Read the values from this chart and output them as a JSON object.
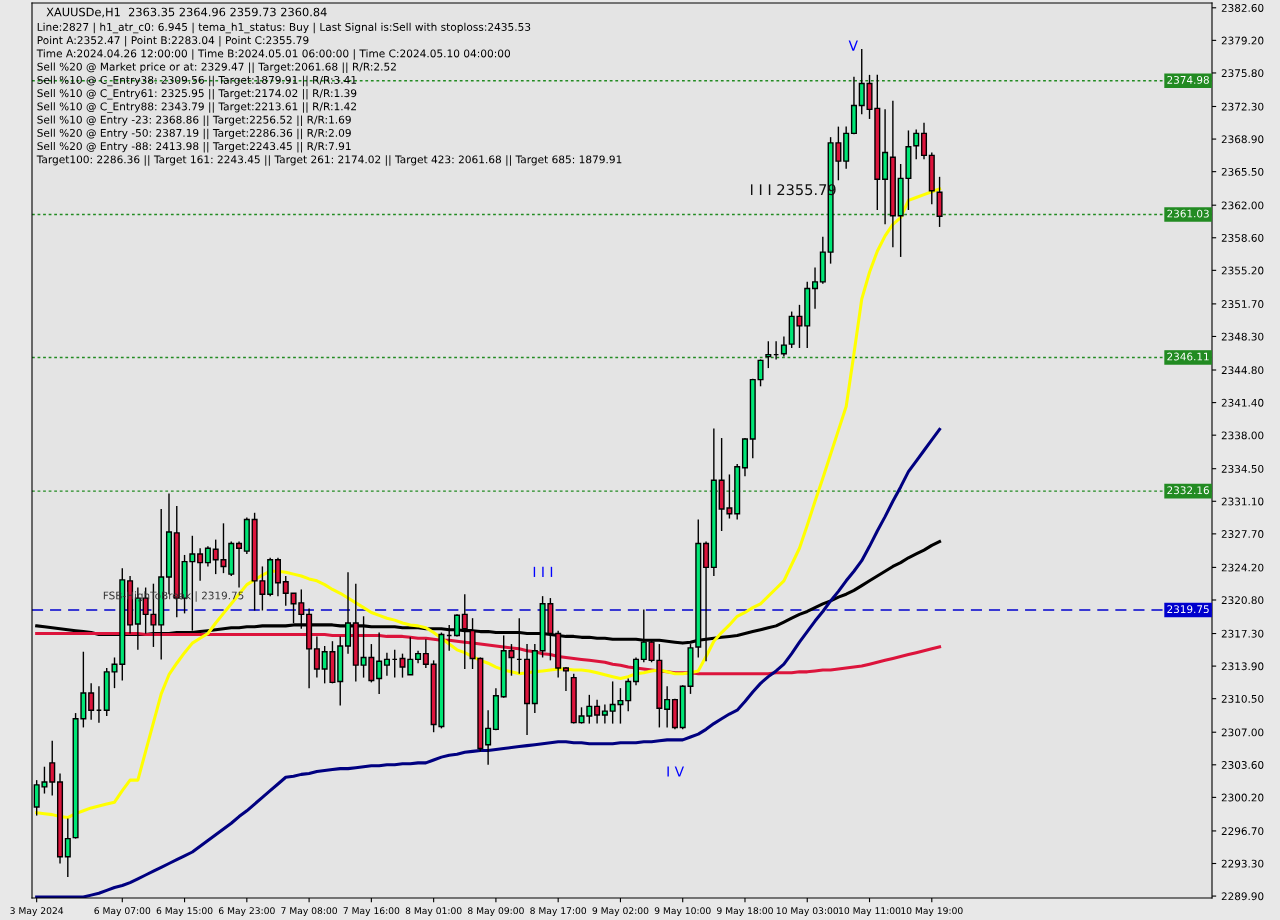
{
  "chart_data": {
    "type": "candlestick",
    "title": "XAUUSDe,H1  2363.35 2364.96 2359.73 2360.84",
    "categories": [
      "3 May 2024",
      null,
      null,
      null,
      null,
      null,
      null,
      null,
      null,
      null,
      null,
      "6 May 07:00",
      null,
      null,
      null,
      null,
      null,
      null,
      null,
      "6 May 15:00",
      null,
      null,
      null,
      null,
      null,
      null,
      null,
      "6 May 23:00",
      null,
      null,
      null,
      null,
      null,
      null,
      null,
      "7 May 08:00",
      null,
      null,
      null,
      null,
      null,
      null,
      null,
      "7 May 16:00",
      null,
      null,
      null,
      null,
      null,
      null,
      null,
      "8 May 01:00",
      null,
      null,
      null,
      null,
      null,
      null,
      null,
      "8 May 09:00",
      null,
      null,
      null,
      null,
      null,
      null,
      null,
      "8 May 17:00",
      null,
      null,
      null,
      null,
      null,
      null,
      null,
      "9 May 02:00",
      null,
      null,
      null,
      null,
      null,
      null,
      null,
      "9 May 10:00",
      null,
      null,
      null,
      null,
      null,
      null,
      null,
      "9 May 18:00",
      null,
      null,
      null,
      null,
      null,
      null,
      null,
      "10 May 03:00",
      null,
      null,
      null,
      null,
      null,
      null,
      null,
      "10 May 11:00",
      null,
      null,
      null,
      null,
      null,
      null,
      null,
      "10 May 19:00",
      null
    ],
    "ohlc": [
      [
        2299.2,
        2302.0,
        2298.3,
        2301.5
      ],
      [
        2301.3,
        2303.4,
        2300.6,
        2301.8
      ],
      [
        2303.8,
        2306.1,
        2300.4,
        2301.8
      ],
      [
        2301.8,
        2302.7,
        2293.3,
        2294.0
      ],
      [
        2294.0,
        2298.0,
        2291.9,
        2295.9
      ],
      [
        2296.0,
        2309.0,
        2295.9,
        2308.4
      ],
      [
        2308.4,
        2315.4,
        2307.5,
        2311.1
      ],
      [
        2311.1,
        2312.1,
        2308.3,
        2309.3
      ],
      [
        2309.3,
        2311.8,
        2308.0,
        2309.3
      ],
      [
        2309.3,
        2313.7,
        2308.7,
        2313.3
      ],
      [
        2313.3,
        2314.8,
        2311.6,
        2314.1
      ],
      [
        2314.1,
        2324.1,
        2312.4,
        2322.9
      ],
      [
        2322.8,
        2323.3,
        2317.3,
        2318.2
      ],
      [
        2318.3,
        2322.1,
        2315.6,
        2321.0
      ],
      [
        2321.0,
        2322.1,
        2317.3,
        2319.3
      ],
      [
        2319.3,
        2322.5,
        2315.9,
        2318.2
      ],
      [
        2318.2,
        2330.3,
        2314.6,
        2323.2
      ],
      [
        2323.2,
        2331.9,
        2321.4,
        2327.9
      ],
      [
        2327.8,
        2330.6,
        2319.0,
        2321.0
      ],
      [
        2321.0,
        2325.5,
        2319.4,
        2324.8
      ],
      [
        2324.8,
        2327.5,
        2317.6,
        2325.6
      ],
      [
        2325.6,
        2326.2,
        2322.8,
        2324.7
      ],
      [
        2324.7,
        2326.4,
        2324.3,
        2326.2
      ],
      [
        2326.1,
        2327.1,
        2323.5,
        2325.0
      ],
      [
        2325.0,
        2328.8,
        2323.6,
        2324.3
      ],
      [
        2323.5,
        2326.9,
        2323.3,
        2326.7
      ],
      [
        2326.7,
        2326.9,
        2322.1,
        2326.2
      ],
      [
        2325.9,
        2329.4,
        2325.6,
        2329.2
      ],
      [
        2329.2,
        2329.9,
        2319.7,
        2322.8
      ],
      [
        2322.8,
        2324.3,
        2319.7,
        2321.4
      ],
      [
        2321.4,
        2325.2,
        2321.2,
        2325.0
      ],
      [
        2325.0,
        2325.2,
        2321.2,
        2322.6
      ],
      [
        2322.7,
        2323.3,
        2320.2,
        2321.5
      ],
      [
        2321.5,
        2321.5,
        2318.4,
        2320.4
      ],
      [
        2320.5,
        2321.9,
        2317.8,
        2319.3
      ],
      [
        2319.3,
        2319.9,
        2311.6,
        2315.7
      ],
      [
        2315.7,
        2317.0,
        2312.7,
        2313.6
      ],
      [
        2313.6,
        2316.0,
        2312.1,
        2315.4
      ],
      [
        2315.4,
        2316.5,
        2312.1,
        2312.2
      ],
      [
        2312.3,
        2317.0,
        2309.8,
        2316.0
      ],
      [
        2316.0,
        2323.7,
        2315.2,
        2318.4
      ],
      [
        2318.4,
        2322.5,
        2312.3,
        2314.0
      ],
      [
        2314.0,
        2319.1,
        2312.7,
        2314.8
      ],
      [
        2314.8,
        2316.2,
        2312.2,
        2312.4
      ],
      [
        2312.6,
        2317.4,
        2311.0,
        2314.4
      ],
      [
        2314.0,
        2315.3,
        2312.9,
        2314.6
      ],
      [
        2314.6,
        2315.6,
        2312.7,
        2314.6
      ],
      [
        2314.7,
        2315.2,
        2312.7,
        2313.8
      ],
      [
        2313.0,
        2316.9,
        2313.0,
        2314.6
      ],
      [
        2314.6,
        2315.5,
        2314.2,
        2315.2
      ],
      [
        2315.2,
        2316.7,
        2313.7,
        2314.1
      ],
      [
        2314.1,
        2314.5,
        2307.0,
        2307.8
      ],
      [
        2307.6,
        2317.4,
        2307.4,
        2317.2
      ],
      [
        2317.1,
        2318.2,
        2315.5,
        2317.1
      ],
      [
        2317.1,
        2319.3,
        2317.0,
        2319.2
      ],
      [
        2319.3,
        2321.4,
        2313.6,
        2317.8
      ],
      [
        2317.6,
        2318.9,
        2313.6,
        2314.7
      ],
      [
        2314.7,
        2314.8,
        2305.0,
        2305.3
      ],
      [
        2305.7,
        2309.3,
        2303.6,
        2307.4
      ],
      [
        2307.3,
        2311.6,
        2307.2,
        2310.8
      ],
      [
        2310.7,
        2317.1,
        2310.6,
        2315.5
      ],
      [
        2315.5,
        2316.2,
        2312.9,
        2314.8
      ],
      [
        2314.6,
        2318.9,
        2313.1,
        2314.6
      ],
      [
        2314.6,
        2316.2,
        2306.7,
        2310.0
      ],
      [
        2310.0,
        2316.2,
        2309.0,
        2315.5
      ],
      [
        2315.5,
        2321.2,
        2314.8,
        2320.4
      ],
      [
        2320.4,
        2321.0,
        2314.5,
        2317.3
      ],
      [
        2317.3,
        2317.6,
        2312.7,
        2313.7
      ],
      [
        2313.7,
        2313.8,
        2311.3,
        2313.4
      ],
      [
        2312.7,
        2313.1,
        2307.9,
        2308.0
      ],
      [
        2308.0,
        2309.6,
        2307.9,
        2308.7
      ],
      [
        2308.7,
        2310.9,
        2307.9,
        2309.7
      ],
      [
        2309.7,
        2310.4,
        2307.9,
        2308.8
      ],
      [
        2308.8,
        2309.9,
        2307.9,
        2309.2
      ],
      [
        2309.2,
        2312.3,
        2307.9,
        2309.9
      ],
      [
        2309.9,
        2311.6,
        2307.9,
        2310.3
      ],
      [
        2310.3,
        2312.6,
        2309.2,
        2312.3
      ],
      [
        2312.3,
        2314.8,
        2311.9,
        2314.6
      ],
      [
        2314.6,
        2319.8,
        2314.3,
        2316.4
      ],
      [
        2316.4,
        2316.7,
        2314.3,
        2314.5
      ],
      [
        2314.5,
        2316.2,
        2307.5,
        2309.5
      ],
      [
        2309.4,
        2311.8,
        2307.5,
        2310.4
      ],
      [
        2310.4,
        2310.5,
        2307.3,
        2307.5
      ],
      [
        2307.5,
        2311.9,
        2307.3,
        2311.8
      ],
      [
        2311.8,
        2316.2,
        2311.0,
        2315.8
      ],
      [
        2315.9,
        2329.2,
        2314.8,
        2326.7
      ],
      [
        2326.7,
        2326.9,
        2314.4,
        2324.2
      ],
      [
        2324.2,
        2338.7,
        2323.3,
        2333.3
      ],
      [
        2333.3,
        2337.7,
        2328.0,
        2330.3
      ],
      [
        2330.4,
        2333.9,
        2329.3,
        2329.8
      ],
      [
        2329.8,
        2335.0,
        2329.2,
        2334.7
      ],
      [
        2334.6,
        2337.7,
        2333.7,
        2337.6
      ],
      [
        2337.6,
        2343.9,
        2335.6,
        2343.8
      ],
      [
        2343.8,
        2345.9,
        2343.1,
        2345.8
      ],
      [
        2346.2,
        2347.8,
        2345.0,
        2346.4
      ],
      [
        2346.4,
        2347.8,
        2345.9,
        2346.4
      ],
      [
        2346.5,
        2348.3,
        2346.2,
        2347.4
      ],
      [
        2347.5,
        2350.9,
        2347.1,
        2350.4
      ],
      [
        2350.4,
        2351.6,
        2347.1,
        2349.4
      ],
      [
        2349.4,
        2354.0,
        2347.1,
        2353.3
      ],
      [
        2353.3,
        2355.5,
        2351.2,
        2354.0
      ],
      [
        2354.0,
        2358.7,
        2353.8,
        2357.1
      ],
      [
        2357.1,
        2369.1,
        2355.9,
        2368.5
      ],
      [
        2368.5,
        2370.2,
        2364.6,
        2366.6
      ],
      [
        2366.6,
        2370.2,
        2365.8,
        2369.5
      ],
      [
        2369.5,
        2375.4,
        2369.4,
        2372.4
      ],
      [
        2372.4,
        2378.3,
        2371.5,
        2374.7
      ],
      [
        2374.7,
        2375.6,
        2371.0,
        2372.0
      ],
      [
        2372.1,
        2375.6,
        2361.5,
        2364.7
      ],
      [
        2364.7,
        2372.0,
        2360.0,
        2367.5
      ],
      [
        2367.0,
        2372.9,
        2357.6,
        2360.9
      ],
      [
        2360.9,
        2366.3,
        2356.6,
        2364.8
      ],
      [
        2364.8,
        2369.8,
        2361.5,
        2368.1
      ],
      [
        2368.2,
        2369.9,
        2366.8,
        2369.5
      ],
      [
        2369.5,
        2370.6,
        2366.8,
        2367.2
      ],
      [
        2367.2,
        2367.5,
        2362.1,
        2363.5
      ],
      [
        2363.35,
        2364.96,
        2359.73,
        2360.84
      ]
    ],
    "colors": [
      "#00e676",
      "#00e676",
      "#dc143c",
      "#dc143c",
      "#00e676",
      "#00e676",
      "#00e676",
      "#dc143c",
      "#000000",
      "#00e676",
      "#00e676",
      "#00e676",
      "#dc143c",
      "#00e676",
      "#dc143c",
      "#dc143c",
      "#00e676",
      "#00e676",
      "#dc143c",
      "#00e676",
      "#00e676",
      "#dc143c",
      "#00e676",
      "#dc143c",
      "#dc143c",
      "#00e676",
      "#dc143c",
      "#00e676",
      "#dc143c",
      "#dc143c",
      "#00e676",
      "#dc143c",
      "#dc143c",
      "#dc143c",
      "#dc143c",
      "#dc143c",
      "#dc143c",
      "#00e676",
      "#dc143c",
      "#00e676",
      "#00e676",
      "#dc143c",
      "#00e676",
      "#dc143c",
      "#00e676",
      "#00e676",
      "#000000",
      "#dc143c",
      "#00e676",
      "#00e676",
      "#dc143c",
      "#dc143c",
      "#00e676",
      "#000000",
      "#00e676",
      "#dc143c",
      "#dc143c",
      "#dc143c",
      "#00e676",
      "#00e676",
      "#00e676",
      "#dc143c",
      "#000000",
      "#dc143c",
      "#00e676",
      "#00e676",
      "#dc143c",
      "#dc143c",
      "#dc143c",
      "#dc143c",
      "#00e676",
      "#00e676",
      "#dc143c",
      "#00e676",
      "#00e676",
      "#00e676",
      "#00e676",
      "#00e676",
      "#00e676",
      "#dc143c",
      "#dc143c",
      "#00e676",
      "#dc143c",
      "#00e676",
      "#00e676",
      "#00e676",
      "#dc143c",
      "#00e676",
      "#dc143c",
      "#dc143c",
      "#00e676",
      "#00e676",
      "#00e676",
      "#00e676",
      "#00e676",
      "#000000",
      "#00e676",
      "#00e676",
      "#dc143c",
      "#00e676",
      "#00e676",
      "#00e676",
      "#00e676",
      "#dc143c",
      "#00e676",
      "#00e676",
      "#00e676",
      "#dc143c",
      "#dc143c",
      "#00e676",
      "#dc143c",
      "#00e676",
      "#00e676",
      "#00e676",
      "#dc143c",
      "#dc143c",
      "#dc143c"
    ],
    "series": [
      {
        "type": "line",
        "color": "#000000",
        "values": [
          2318.1,
          2318.0,
          2317.9,
          2317.8,
          2317.7,
          2317.6,
          2317.5,
          2317.4,
          2317.2,
          2317.2,
          2317.2,
          2317.2,
          2317.2,
          2317.2,
          2317.2,
          2317.3,
          2317.3,
          2317.3,
          2317.4,
          2317.4,
          2317.4,
          2317.5,
          2317.6,
          2317.7,
          2317.8,
          2317.9,
          2317.9,
          2318.0,
          2318.0,
          2318.1,
          2318.1,
          2318.1,
          2318.1,
          2318.2,
          2318.2,
          2318.2,
          2318.2,
          2318.2,
          2318.2,
          2318.1,
          2318.1,
          2318.1,
          2318.1,
          2318.0,
          2318.0,
          2318.0,
          2318.0,
          2317.9,
          2317.9,
          2317.9,
          2317.8,
          2317.8,
          2317.8,
          2317.7,
          2317.7,
          2317.6,
          2317.6,
          2317.5,
          2317.5,
          2317.4,
          2317.4,
          2317.4,
          2317.4,
          2317.3,
          2317.3,
          2317.3,
          2317.2,
          2317.1,
          2317.0,
          2317.0,
          2316.9,
          2316.9,
          2316.8,
          2316.8,
          2316.7,
          2316.7,
          2316.7,
          2316.7,
          2316.6,
          2316.6,
          2316.6,
          2316.5,
          2316.4,
          2316.3,
          2316.4,
          2316.6,
          2316.7,
          2316.8,
          2316.9,
          2317.0,
          2317.1,
          2317.3,
          2317.5,
          2317.7,
          2317.9,
          2318.1,
          2318.5,
          2318.9,
          2319.3,
          2319.6,
          2320.0,
          2320.4,
          2320.7,
          2321.1,
          2321.4,
          2321.8,
          2322.3,
          2322.8,
          2323.3,
          2323.8,
          2324.3,
          2324.7,
          2325.2,
          2325.6,
          2326.0,
          2326.5,
          2326.9
        ]
      },
      {
        "type": "line",
        "color": "#dc143c",
        "values": [
          2317.3,
          2317.3,
          2317.3,
          2317.3,
          2317.3,
          2317.3,
          2317.3,
          2317.3,
          2317.3,
          2317.3,
          2317.3,
          2317.3,
          2317.3,
          2317.3,
          2317.2,
          2317.2,
          2317.2,
          2317.2,
          2317.2,
          2317.2,
          2317.2,
          2317.2,
          2317.2,
          2317.2,
          2317.2,
          2317.2,
          2317.2,
          2317.2,
          2317.2,
          2317.2,
          2317.2,
          2317.2,
          2317.2,
          2317.2,
          2317.2,
          2317.2,
          2317.2,
          2317.2,
          2317.1,
          2317.1,
          2317.1,
          2317.1,
          2317.1,
          2317.1,
          2317.1,
          2317.0,
          2317.0,
          2317.0,
          2316.9,
          2316.8,
          2316.8,
          2316.7,
          2316.6,
          2316.6,
          2316.5,
          2316.4,
          2316.3,
          2316.2,
          2316.1,
          2316.0,
          2315.9,
          2315.8,
          2315.7,
          2315.5,
          2315.4,
          2315.2,
          2315.1,
          2314.9,
          2314.8,
          2314.7,
          2314.6,
          2314.5,
          2314.4,
          2314.3,
          2314.1,
          2314.0,
          2313.8,
          2313.7,
          2313.6,
          2313.5,
          2313.4,
          2313.3,
          2313.2,
          2313.2,
          2313.2,
          2313.1,
          2313.1,
          2313.1,
          2313.1,
          2313.1,
          2313.1,
          2313.1,
          2313.1,
          2313.1,
          2313.1,
          2313.2,
          2313.2,
          2313.2,
          2313.3,
          2313.3,
          2313.4,
          2313.5,
          2313.5,
          2313.6,
          2313.7,
          2313.8,
          2313.9,
          2314.1,
          2314.3,
          2314.5,
          2314.7,
          2314.9,
          2315.1,
          2315.3,
          2315.5,
          2315.7,
          2315.9
        ]
      },
      {
        "type": "line",
        "color": "#000080",
        "values": [
          2289.8,
          2289.8,
          2289.8,
          2289.8,
          2289.8,
          2289.8,
          2289.8,
          2290.0,
          2290.2,
          2290.5,
          2290.8,
          2291.0,
          2291.3,
          2291.7,
          2292.1,
          2292.5,
          2292.9,
          2293.3,
          2293.7,
          2294.1,
          2294.5,
          2295.1,
          2295.7,
          2296.3,
          2296.9,
          2297.5,
          2298.2,
          2298.8,
          2299.5,
          2300.2,
          2300.9,
          2301.6,
          2302.3,
          2302.4,
          2302.6,
          2302.7,
          2302.9,
          2303.0,
          2303.1,
          2303.2,
          2303.2,
          2303.3,
          2303.4,
          2303.5,
          2303.5,
          2303.6,
          2303.6,
          2303.7,
          2303.7,
          2303.8,
          2303.8,
          2304.1,
          2304.4,
          2304.6,
          2304.7,
          2304.9,
          2305.0,
          2305.1,
          2305.1,
          2305.2,
          2305.3,
          2305.4,
          2305.5,
          2305.6,
          2305.7,
          2305.8,
          2305.9,
          2306.0,
          2306.0,
          2305.9,
          2305.9,
          2305.8,
          2305.8,
          2305.8,
          2305.8,
          2305.9,
          2305.9,
          2305.9,
          2306.0,
          2306.0,
          2306.1,
          2306.2,
          2306.2,
          2306.2,
          2306.5,
          2306.8,
          2307.3,
          2307.9,
          2308.4,
          2308.9,
          2309.3,
          2310.2,
          2311.2,
          2312.1,
          2312.8,
          2313.4,
          2314.1,
          2315.2,
          2316.4,
          2317.5,
          2318.6,
          2319.6,
          2320.7,
          2321.7,
          2322.8,
          2323.8,
          2324.9,
          2326.4,
          2328.0,
          2329.5,
          2331.1,
          2332.6,
          2334.2,
          2335.3,
          2336.4,
          2337.5,
          2338.6
        ]
      },
      {
        "type": "line",
        "color": "#ffff00",
        "values": [
          2298.6,
          2298.5,
          2298.4,
          2298.2,
          2298.1,
          2298.5,
          2298.8,
          2299.1,
          2299.3,
          2299.5,
          2299.7,
          2300.9,
          2302.0,
          2302.0,
          2305.0,
          2308.0,
          2311.0,
          2313.0,
          2314.2,
          2315.3,
          2316.3,
          2316.8,
          2317.3,
          2318.4,
          2319.4,
          2320.4,
          2321.4,
          2322.4,
          2322.9,
          2323.4,
          2323.8,
          2323.8,
          2323.7,
          2323.5,
          2323.3,
          2323.0,
          2322.8,
          2322.4,
          2321.9,
          2321.5,
          2321.0,
          2320.5,
          2320.0,
          2319.5,
          2319.2,
          2318.9,
          2318.7,
          2318.4,
          2318.2,
          2318.1,
          2317.9,
          2317.4,
          2316.8,
          2316.2,
          2315.6,
          2315.3,
          2314.9,
          2314.5,
          2314.2,
          2313.8,
          2313.5,
          2313.3,
          2313.1,
          2313.2,
          2313.3,
          2313.4,
          2313.5,
          2313.6,
          2313.6,
          2313.5,
          2313.5,
          2313.4,
          2313.2,
          2313.0,
          2312.8,
          2312.6,
          2312.8,
          2313.1,
          2313.2,
          2313.4,
          2313.5,
          2313.3,
          2313.1,
          2313.1,
          2313.2,
          2313.4,
          2314.9,
          2316.5,
          2317.4,
          2318.2,
          2319.1,
          2319.5,
          2320.0,
          2320.4,
          2321.2,
          2322.0,
          2322.8,
          2324.5,
          2326.2,
          2328.6,
          2331.1,
          2333.5,
          2336.0,
          2338.5,
          2341.0,
          2346.5,
          2352.2,
          2355.0,
          2357.2,
          2358.8,
          2360.0,
          2360.7,
          2362.5,
          2362.8,
          2363.1,
          2363.4,
          2363.7
        ]
      }
    ],
    "ylim": [
      2289.7,
      2383.1
    ],
    "yticks": [
      {
        "value": 2289.9,
        "label": "2289.90"
      },
      {
        "value": 2293.3,
        "label": "2293.30"
      },
      {
        "value": 2296.7,
        "label": "2296.70"
      },
      {
        "value": 2300.2,
        "label": "2300.20"
      },
      {
        "value": 2303.6,
        "label": "2303.60"
      },
      {
        "value": 2307.0,
        "label": "2307.00"
      },
      {
        "value": 2310.5,
        "label": "2310.50"
      },
      {
        "value": 2313.9,
        "label": "2313.90"
      },
      {
        "value": 2317.3,
        "label": "2317.30"
      },
      {
        "value": 2320.8,
        "label": "2320.80"
      },
      {
        "value": 2324.2,
        "label": "2324.20"
      },
      {
        "value": 2327.7,
        "label": "2327.70"
      },
      {
        "value": 2331.1,
        "label": "2331.10"
      },
      {
        "value": 2334.5,
        "label": "2334.50"
      },
      {
        "value": 2338.0,
        "label": "2338.00"
      },
      {
        "value": 2341.4,
        "label": "2341.40"
      },
      {
        "value": 2344.8,
        "label": "2344.80"
      },
      {
        "value": 2348.3,
        "label": "2348.30"
      },
      {
        "value": 2351.7,
        "label": "2351.70"
      },
      {
        "value": 2355.2,
        "label": "2355.20"
      },
      {
        "value": 2358.6,
        "label": "2358.60"
      },
      {
        "value": 2362.0,
        "label": "2362.00"
      },
      {
        "value": 2365.5,
        "label": "2365.50"
      },
      {
        "value": 2368.9,
        "label": "2368.90"
      },
      {
        "value": 2372.3,
        "label": "2372.30"
      },
      {
        "value": 2375.8,
        "label": "2375.80"
      },
      {
        "value": 2379.2,
        "label": "2379.20"
      },
      {
        "value": 2382.6,
        "label": "2382.60"
      }
    ],
    "ref_lines": [
      {
        "axis": "y",
        "value": 2374.98,
        "label": "2374.98",
        "color": "#228b22",
        "line_style": "dotted"
      },
      {
        "axis": "y",
        "value": 2361.03,
        "label": "2361.03",
        "color": "#228b22",
        "line_style": "dotted"
      },
      {
        "axis": "y",
        "value": 2346.11,
        "label": "2346.11",
        "color": "#228b22",
        "line_style": "dotted"
      },
      {
        "axis": "y",
        "value": 2332.16,
        "label": "2332.16",
        "color": "#228b22",
        "line_style": "dotted"
      },
      {
        "axis": "y",
        "value": 2319.75,
        "label": "2319.75",
        "color": "#0000cd",
        "line_style": "dashed"
      }
    ],
    "annotations": [
      "Line:2827 | h1_atr_c0: 6.945 | tema_h1_status: Buy | Last Signal is:Sell with stoploss:2435.53",
      "Point A:2352.47 | Point B:2283.04 | Point C:2355.79",
      "Time A:2024.04.26 12:00:00 | Time B:2024.05.01 06:00:00 | Time C:2024.05.10 04:00:00",
      "Sell %20 @ Market price or at: 2329.47 || Target:2061.68 || R/R:2.52",
      "Sell %10 @ C_Entry38: 2309.56 || Target:1879.91 || R/R:3.41",
      "Sell %10 @ C_Entry61: 2325.95 || Target:2174.02 || R/R:1.39",
      "Sell %10 @ C_Entry88: 2343.79 || Target:2213.61 || R/R:1.42",
      "Sell %10 @ Entry -23: 2368.86 || Target:2256.52 || R/R:1.69",
      "Sell %20 @ Entry -50: 2387.19 || Target:2286.36 || R/R:2.09",
      "Sell %20 @ Entry -88: 2413.98 || Target:2243.45 || R/R:7.91",
      "Target100: 2286.36 || Target 161: 2243.45 || Target 261: 2174.02 || Target 423: 2061.68 || Target 685: 1879.91",
      {
        "text": "FSB-HighToBreak | 2319.75",
        "y": 2319.75
      },
      "I I I 2355.79",
      "I I I",
      "I V",
      "V"
    ]
  }
}
